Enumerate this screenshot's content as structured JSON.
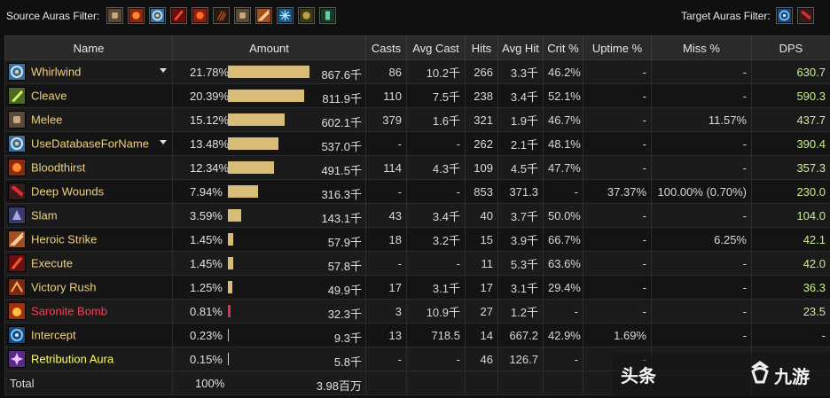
{
  "filters": {
    "source_label": "Source Auras Filter:",
    "target_label": "Target Auras Filter:",
    "source_icons": [
      "fist-icon",
      "bloodthirst-icon",
      "whirlwind-icon",
      "execute-icon",
      "berserker-icon",
      "claw-icon",
      "fist-icon",
      "heroic-strike-icon",
      "frost-icon",
      "trinket-icon",
      "totem-icon"
    ],
    "target_icons": [
      "intercept-icon",
      "deep-wounds-icon"
    ]
  },
  "table": {
    "columns": [
      "Name",
      "Amount",
      "Casts",
      "Avg Cast",
      "Hits",
      "Avg Hit",
      "Crit %",
      "Uptime %",
      "Miss %",
      "DPS"
    ],
    "rows": [
      {
        "name": "Whirlwind",
        "name_color": "#f0d080",
        "icon": "whirlwind-icon",
        "dropdown": true,
        "pct": "21.78%",
        "bar": 0.2178,
        "bar_color": "#d8bc78",
        "amount": "867.6千",
        "casts": "86",
        "avg_cast": "10.2千",
        "hits": "266",
        "avg_hit": "3.3千",
        "crit": "46.2%",
        "uptime": "-",
        "miss": "-",
        "dps": "630.7"
      },
      {
        "name": "Cleave",
        "name_color": "#f0d080",
        "icon": "cleave-icon",
        "dropdown": false,
        "pct": "20.39%",
        "bar": 0.2039,
        "bar_color": "#d8bc78",
        "amount": "811.9千",
        "casts": "110",
        "avg_cast": "7.5千",
        "hits": "238",
        "avg_hit": "3.4千",
        "crit": "52.1%",
        "uptime": "-",
        "miss": "-",
        "dps": "590.3"
      },
      {
        "name": "Melee",
        "name_color": "#f0d080",
        "icon": "fist-icon",
        "dropdown": false,
        "pct": "15.12%",
        "bar": 0.1512,
        "bar_color": "#d8bc78",
        "amount": "602.1千",
        "casts": "379",
        "avg_cast": "1.6千",
        "hits": "321",
        "avg_hit": "1.9千",
        "crit": "46.7%",
        "uptime": "-",
        "miss": "11.57%",
        "dps": "437.7"
      },
      {
        "name": "UseDatabaseForName",
        "name_color": "#f0d080",
        "icon": "whirlwind-icon",
        "dropdown": true,
        "pct": "13.48%",
        "bar": 0.1348,
        "bar_color": "#d8bc78",
        "amount": "537.0千",
        "casts": "-",
        "avg_cast": "-",
        "hits": "262",
        "avg_hit": "2.1千",
        "crit": "48.1%",
        "uptime": "-",
        "miss": "-",
        "dps": "390.4"
      },
      {
        "name": "Bloodthirst",
        "name_color": "#f0d080",
        "icon": "bloodthirst-icon",
        "dropdown": false,
        "pct": "12.34%",
        "bar": 0.1234,
        "bar_color": "#d8bc78",
        "amount": "491.5千",
        "casts": "114",
        "avg_cast": "4.3千",
        "hits": "109",
        "avg_hit": "4.5千",
        "crit": "47.7%",
        "uptime": "-",
        "miss": "-",
        "dps": "357.3"
      },
      {
        "name": "Deep Wounds",
        "name_color": "#f0d080",
        "icon": "deep-wounds-icon",
        "dropdown": false,
        "pct": "7.94%",
        "bar": 0.0794,
        "bar_color": "#d8bc78",
        "amount": "316.3千",
        "casts": "-",
        "avg_cast": "-",
        "hits": "853",
        "avg_hit": "371.3",
        "crit": "-",
        "uptime": "37.37%",
        "miss": "100.00% (0.70%)",
        "dps": "230.0"
      },
      {
        "name": "Slam",
        "name_color": "#f0d080",
        "icon": "slam-icon",
        "dropdown": false,
        "pct": "3.59%",
        "bar": 0.0359,
        "bar_color": "#d8bc78",
        "amount": "143.1千",
        "casts": "43",
        "avg_cast": "3.4千",
        "hits": "40",
        "avg_hit": "3.7千",
        "crit": "50.0%",
        "uptime": "-",
        "miss": "-",
        "dps": "104.0"
      },
      {
        "name": "Heroic Strike",
        "name_color": "#f0d080",
        "icon": "heroic-strike-icon",
        "dropdown": false,
        "pct": "1.45%",
        "bar": 0.0145,
        "bar_color": "#d8bc78",
        "amount": "57.9千",
        "casts": "18",
        "avg_cast": "3.2千",
        "hits": "15",
        "avg_hit": "3.9千",
        "crit": "66.7%",
        "uptime": "-",
        "miss": "6.25%",
        "dps": "42.1"
      },
      {
        "name": "Execute",
        "name_color": "#f0d080",
        "icon": "execute-icon",
        "dropdown": false,
        "pct": "1.45%",
        "bar": 0.0145,
        "bar_color": "#d8bc78",
        "amount": "57.8千",
        "casts": "-",
        "avg_cast": "-",
        "hits": "11",
        "avg_hit": "5.3千",
        "crit": "63.6%",
        "uptime": "-",
        "miss": "-",
        "dps": "42.0"
      },
      {
        "name": "Victory Rush",
        "name_color": "#f0d080",
        "icon": "victory-rush-icon",
        "dropdown": false,
        "pct": "1.25%",
        "bar": 0.0125,
        "bar_color": "#d8bc78",
        "amount": "49.9千",
        "casts": "17",
        "avg_cast": "3.1千",
        "hits": "17",
        "avg_hit": "3.1千",
        "crit": "29.4%",
        "uptime": "-",
        "miss": "-",
        "dps": "36.3"
      },
      {
        "name": "Saronite Bomb",
        "name_color": "#ff3c5a",
        "icon": "bomb-icon",
        "dropdown": false,
        "pct": "0.81%",
        "bar": 0.0081,
        "bar_color": "#e0304a",
        "amount": "32.3千",
        "casts": "3",
        "avg_cast": "10.9千",
        "hits": "27",
        "avg_hit": "1.2千",
        "crit": "-",
        "uptime": "-",
        "miss": "-",
        "dps": "23.5"
      },
      {
        "name": "Intercept",
        "name_color": "#f0d080",
        "icon": "intercept-icon",
        "dropdown": false,
        "pct": "0.23%",
        "bar": 0.0023,
        "bar_color": "#d8bc78",
        "amount": "9.3千",
        "casts": "13",
        "avg_cast": "718.5",
        "hits": "14",
        "avg_hit": "667.2",
        "crit": "42.9%",
        "uptime": "1.69%",
        "miss": "-",
        "dps": "-"
      },
      {
        "name": "Retribution Aura",
        "name_color": "#ffff60",
        "icon": "retribution-aura-icon",
        "dropdown": false,
        "pct": "0.15%",
        "bar": 0.0015,
        "bar_color": "#e8e070",
        "amount": "5.8千",
        "casts": "-",
        "avg_cast": "-",
        "hits": "46",
        "avg_hit": "126.7",
        "crit": "-",
        "uptime": "-",
        "miss": "",
        "dps": ""
      }
    ],
    "total": {
      "label": "Total",
      "pct": "100%",
      "amount": "3.98百万"
    }
  },
  "watermark": {
    "text1": "头条",
    "text2": "九游"
  }
}
